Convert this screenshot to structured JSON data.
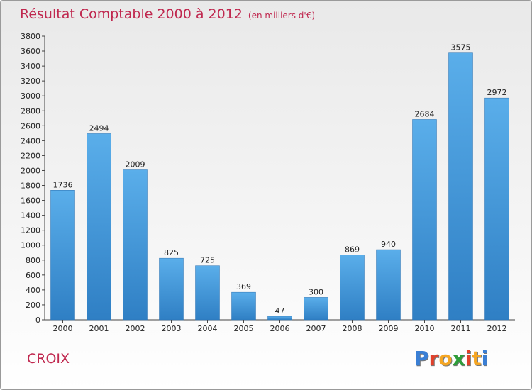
{
  "header": {
    "title": "Résultat Comptable 2000 à 2012",
    "subtitle": "(en milliers d'€)"
  },
  "footer": {
    "place": "CROIX",
    "logo_letters": [
      "P",
      "r",
      "o",
      "x",
      "i",
      "t",
      "i"
    ],
    "logo_colors": [
      "#3a7fd5",
      "#e2402a",
      "#f5a623",
      "#2e9d3a",
      "#e2402a",
      "#f5a623",
      "#3a7fd5"
    ]
  },
  "chart_data": {
    "type": "bar",
    "title": "Résultat Comptable 2000 à 2012",
    "subtitle": "(en milliers d'€)",
    "categories": [
      "2000",
      "2001",
      "2002",
      "2003",
      "2004",
      "2005",
      "2006",
      "2007",
      "2008",
      "2009",
      "2010",
      "2011",
      "2012"
    ],
    "values": [
      1736,
      2494,
      2009,
      825,
      725,
      369,
      47,
      300,
      869,
      940,
      2684,
      3575,
      2972
    ],
    "ylim": [
      0,
      3800
    ],
    "yticks": [
      0,
      200,
      400,
      600,
      800,
      1000,
      1200,
      1400,
      1600,
      1800,
      2000,
      2200,
      2400,
      2600,
      2800,
      3000,
      3200,
      3400,
      3600,
      3800
    ],
    "grid": false,
    "bar_color": "#4a9fe0",
    "xlabel": "",
    "ylabel": ""
  }
}
